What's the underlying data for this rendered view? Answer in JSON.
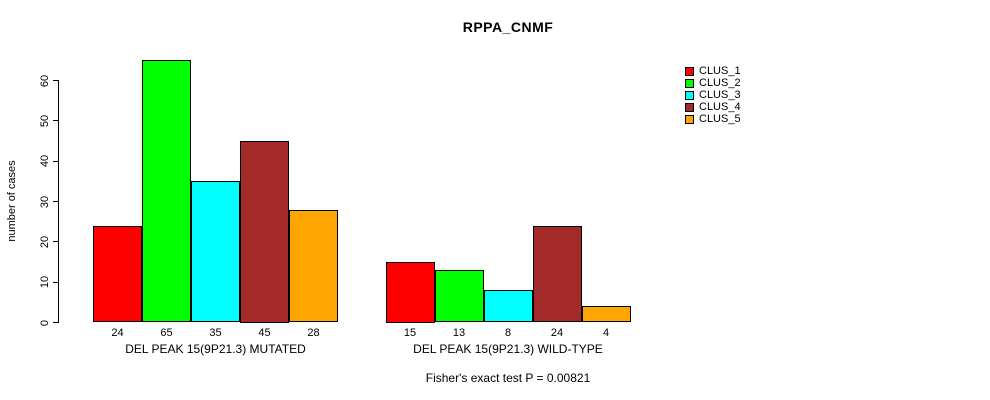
{
  "header": {
    "title": "RPPA_CNMF"
  },
  "footer": {
    "annotation": "Fisher's exact test P = 0.00821"
  },
  "chart_data": {
    "type": "bar",
    "title": "RPPA_CNMF",
    "xlabel": "",
    "ylabel": "number of cases",
    "ylim": [
      0,
      65
    ],
    "yticks": [
      0,
      10,
      20,
      30,
      40,
      50,
      60
    ],
    "grid": false,
    "bar_value_labels_shown": true,
    "legend_position": "right",
    "categories": [
      "DEL PEAK 15(9P21.3) MUTATED",
      "DEL PEAK 15(9P21.3) WILD-TYPE"
    ],
    "series": [
      {
        "name": "CLUS_1",
        "color": "#FF0000",
        "values": [
          24,
          15
        ]
      },
      {
        "name": "CLUS_2",
        "color": "#00FF00",
        "values": [
          65,
          13
        ]
      },
      {
        "name": "CLUS_3",
        "color": "#00FFFF",
        "values": [
          35,
          8
        ]
      },
      {
        "name": "CLUS_4",
        "color": "#A52A2A",
        "values": [
          45,
          24
        ]
      },
      {
        "name": "CLUS_5",
        "color": "#FFA500",
        "values": [
          28,
          4
        ]
      }
    ],
    "annotation": "Fisher's exact test P = 0.00821"
  }
}
